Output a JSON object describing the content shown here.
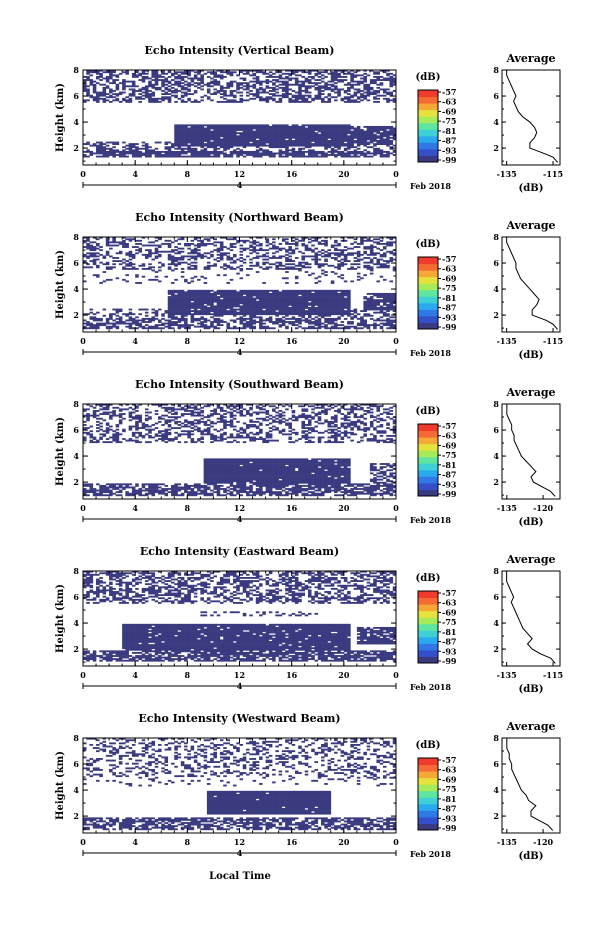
{
  "colors": {
    "echo": "#3a3a80",
    "colorbar": [
      "#3a3a80",
      "#3450c8",
      "#2f78e6",
      "#2aa9ef",
      "#3fd0d7",
      "#5ee6a1",
      "#a6ec5a",
      "#e6e23c",
      "#f7a736",
      "#f46b33",
      "#ee3b2b"
    ]
  },
  "shared": {
    "xticks": [
      "0",
      "4",
      "8",
      "12",
      "16",
      "20",
      "0"
    ],
    "day_label": "4",
    "month_label": "Feb 2018",
    "yticks": [
      "2",
      "4",
      "6",
      "8"
    ],
    "ylabel": "Height (km)",
    "cb_unit": "(dB)",
    "cb_ticks": [
      "-57",
      "-63",
      "-69",
      "-75",
      "-81",
      "-87",
      "-93",
      "-99"
    ],
    "avg_title": "Average",
    "avg_unit": "(dB)",
    "avg_yticks": [
      "2",
      "4",
      "6",
      "8"
    ],
    "xlabel": "Local Time"
  },
  "chart_data": [
    {
      "type": "heatmap",
      "title": "Echo Intensity (Vertical Beam)",
      "x_range": [
        0,
        24
      ],
      "y_range": [
        0.7,
        8.0
      ],
      "layers": [
        {
          "x": [
            0,
            24
          ],
          "y": [
            1.2,
            1.7
          ],
          "density": 0.8
        },
        {
          "x": [
            0,
            24
          ],
          "y": [
            1.7,
            2.4
          ],
          "density": 0.45
        },
        {
          "x": [
            7,
            20.5
          ],
          "y": [
            2.1,
            3.8
          ],
          "density": 0.97
        },
        {
          "x": [
            20.5,
            24
          ],
          "y": [
            2.2,
            3.6
          ],
          "density": 0.85
        },
        {
          "x": [
            0,
            24
          ],
          "y": [
            5.5,
            8.0
          ],
          "density": 0.5
        }
      ],
      "avg": {
        "xticks": [
          "-135",
          "-115"
        ],
        "xlim": [
          -137,
          -112
        ],
        "height": [
          0.9,
          1.3,
          1.6,
          2.0,
          2.4,
          2.8,
          3.2,
          3.6,
          4.0,
          4.4,
          4.8,
          5.2,
          5.6,
          6.0,
          6.4,
          6.8,
          7.2,
          7.6,
          8.0
        ],
        "db": [
          -113,
          -115,
          -119,
          -125,
          -125,
          -123,
          -122,
          -123,
          -125,
          -128,
          -130,
          -131,
          -132,
          -131,
          -132,
          -133,
          -134,
          -135,
          -135
        ]
      }
    },
    {
      "type": "heatmap",
      "title": "Echo Intensity (Northward Beam)",
      "x_range": [
        0,
        24
      ],
      "y_range": [
        0.7,
        8.0
      ],
      "layers": [
        {
          "x": [
            0,
            24
          ],
          "y": [
            0.9,
            1.7
          ],
          "density": 0.6
        },
        {
          "x": [
            0,
            24
          ],
          "y": [
            1.7,
            2.4
          ],
          "density": 0.35
        },
        {
          "x": [
            6.5,
            20.5
          ],
          "y": [
            2.0,
            3.9
          ],
          "density": 0.96
        },
        {
          "x": [
            21.3,
            24
          ],
          "y": [
            2.3,
            3.6
          ],
          "density": 0.85
        },
        {
          "x": [
            0,
            24
          ],
          "y": [
            5.5,
            8.0
          ],
          "density": 0.4
        },
        {
          "x": [
            0,
            24
          ],
          "y": [
            4.4,
            5.5
          ],
          "density": 0.12
        }
      ],
      "avg": {
        "xticks": [
          "-135",
          "-115"
        ],
        "xlim": [
          -137,
          -112
        ],
        "height": [
          0.9,
          1.3,
          1.6,
          2.0,
          2.4,
          2.8,
          3.2,
          3.6,
          4.0,
          4.4,
          4.8,
          5.2,
          5.6,
          6.0,
          6.4,
          6.8,
          7.2,
          7.6,
          8.0
        ],
        "db": [
          -113,
          -115,
          -118,
          -124,
          -124,
          -122,
          -121,
          -123,
          -125,
          -127,
          -129,
          -130,
          -131,
          -131,
          -132,
          -133,
          -134,
          -135,
          -135
        ]
      }
    },
    {
      "type": "heatmap",
      "title": "Echo Intensity (Southward Beam)",
      "x_range": [
        0,
        24
      ],
      "y_range": [
        0.7,
        8.0
      ],
      "layers": [
        {
          "x": [
            0,
            24
          ],
          "y": [
            0.9,
            1.8
          ],
          "density": 0.7
        },
        {
          "x": [
            9.2,
            20.5
          ],
          "y": [
            1.8,
            3.8
          ],
          "density": 0.96
        },
        {
          "x": [
            22,
            24
          ],
          "y": [
            1.8,
            3.4
          ],
          "density": 0.5
        },
        {
          "x": [
            0,
            24
          ],
          "y": [
            5.0,
            8.0
          ],
          "density": 0.4
        }
      ],
      "avg": {
        "xticks": [
          "-135",
          "-120"
        ],
        "xlim": [
          -137,
          -113
        ],
        "height": [
          0.9,
          1.3,
          1.6,
          2.0,
          2.4,
          2.8,
          3.2,
          3.6,
          4.0,
          4.4,
          4.8,
          5.2,
          5.6,
          6.0,
          6.4,
          6.8,
          7.2,
          7.6,
          8.0
        ],
        "db": [
          -115,
          -117,
          -120,
          -124,
          -125,
          -123,
          -125,
          -127,
          -129,
          -130,
          -131,
          -132,
          -132,
          -133,
          -133,
          -134,
          -135,
          -135,
          -135
        ]
      }
    },
    {
      "type": "heatmap",
      "title": "Echo Intensity (Eastward Beam)",
      "x_range": [
        0,
        24
      ],
      "y_range": [
        0.7,
        8.0
      ],
      "layers": [
        {
          "x": [
            0,
            24
          ],
          "y": [
            1.0,
            1.8
          ],
          "density": 0.75
        },
        {
          "x": [
            3,
            20.5
          ],
          "y": [
            1.8,
            3.9
          ],
          "density": 0.95
        },
        {
          "x": [
            21,
            24
          ],
          "y": [
            2.3,
            3.7
          ],
          "density": 0.8
        },
        {
          "x": [
            0,
            24
          ],
          "y": [
            5.5,
            8.0
          ],
          "density": 0.5
        },
        {
          "x": [
            9,
            18
          ],
          "y": [
            4.5,
            4.9
          ],
          "density": 0.3
        }
      ],
      "avg": {
        "xticks": [
          "-135",
          "-115"
        ],
        "xlim": [
          -137,
          -112
        ],
        "height": [
          0.9,
          1.3,
          1.6,
          2.0,
          2.4,
          2.8,
          3.2,
          3.6,
          4.0,
          4.4,
          4.8,
          5.2,
          5.6,
          6.0,
          6.4,
          6.8,
          7.2,
          7.6,
          8.0
        ],
        "db": [
          -114,
          -116,
          -120,
          -124,
          -126,
          -124,
          -126,
          -128,
          -129,
          -130,
          -131,
          -132,
          -133,
          -132,
          -133,
          -134,
          -135,
          -135,
          -135
        ]
      }
    },
    {
      "type": "heatmap",
      "title": "Echo Intensity (Westward Beam)",
      "x_range": [
        0,
        24
      ],
      "y_range": [
        0.7,
        8.0
      ],
      "layers": [
        {
          "x": [
            0,
            24
          ],
          "y": [
            0.9,
            1.8
          ],
          "density": 0.65
        },
        {
          "x": [
            9.5,
            19
          ],
          "y": [
            2.1,
            3.9
          ],
          "density": 0.97
        },
        {
          "x": [
            0,
            24
          ],
          "y": [
            5.0,
            8.0
          ],
          "density": 0.3
        },
        {
          "x": [
            0,
            24
          ],
          "y": [
            4.3,
            5.0
          ],
          "density": 0.1
        }
      ],
      "avg": {
        "xticks": [
          "-135",
          "-120"
        ],
        "xlim": [
          -137,
          -113
        ],
        "height": [
          0.9,
          1.3,
          1.6,
          2.0,
          2.4,
          2.8,
          3.2,
          3.6,
          4.0,
          4.4,
          4.8,
          5.2,
          5.6,
          6.0,
          6.4,
          6.8,
          7.2,
          7.6,
          8.0
        ],
        "db": [
          -116,
          -118,
          -121,
          -125,
          -125,
          -123,
          -126,
          -127,
          -129,
          -130,
          -131,
          -132,
          -133,
          -133,
          -134,
          -134,
          -135,
          -135,
          -135
        ]
      }
    }
  ]
}
